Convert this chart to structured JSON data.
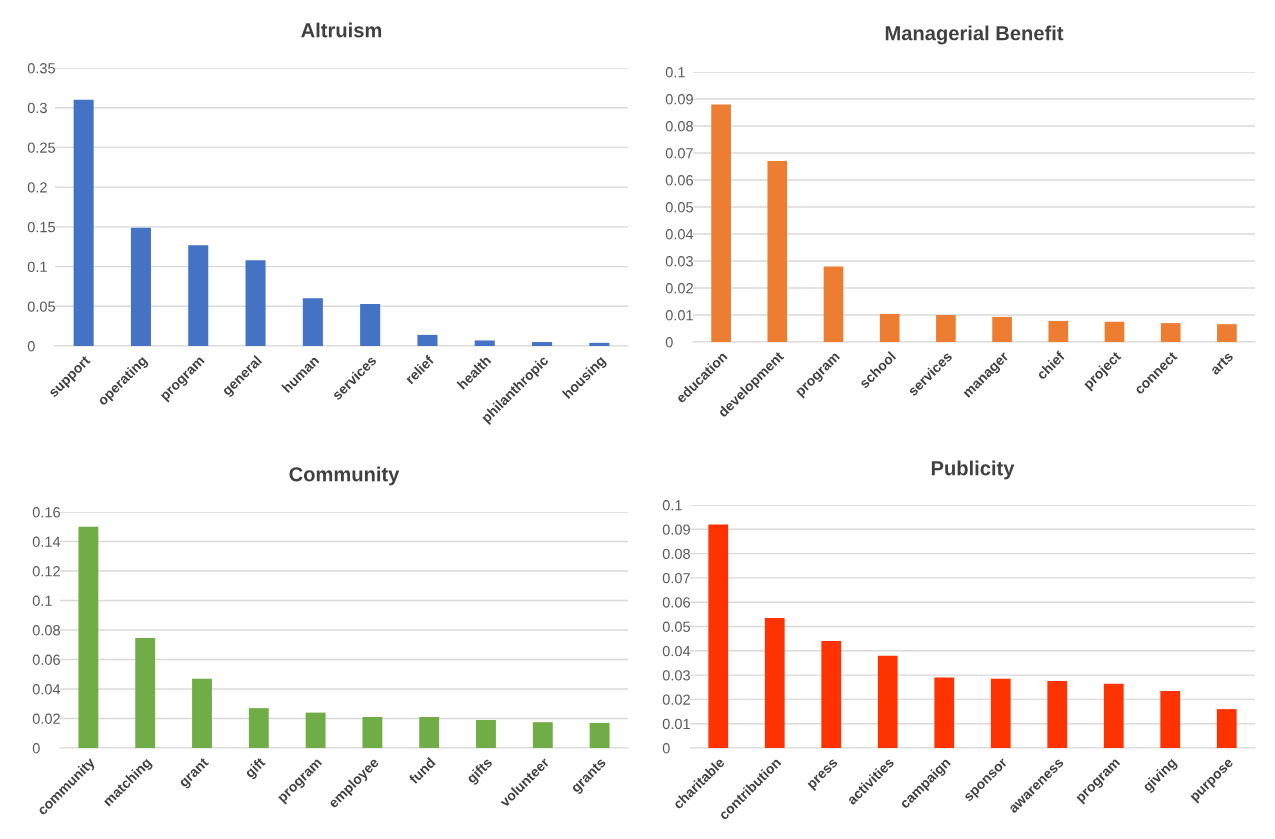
{
  "chart_data": [
    {
      "type": "bar",
      "title": "Altruism",
      "categories": [
        "support",
        "operating",
        "program",
        "general",
        "human",
        "services",
        "relief",
        "health",
        "philanthropic",
        "housing"
      ],
      "values": [
        0.31,
        0.149,
        0.127,
        0.108,
        0.06,
        0.053,
        0.014,
        0.007,
        0.005,
        0.004
      ],
      "color": "#4472c4",
      "ylim": [
        0,
        0.35
      ],
      "yticks": [
        0,
        0.05,
        0.1,
        0.15,
        0.2,
        0.25,
        0.3,
        0.35
      ],
      "grid": "y"
    },
    {
      "type": "bar",
      "title": "Managerial Benefit",
      "categories": [
        "education",
        "development",
        "program",
        "school",
        "services",
        "manager",
        "chief",
        "project",
        "connect",
        "arts"
      ],
      "values": [
        0.088,
        0.067,
        0.028,
        0.0104,
        0.01,
        0.0093,
        0.0078,
        0.0075,
        0.007,
        0.0066
      ],
      "color": "#ed7d31",
      "ylim": [
        0,
        0.1
      ],
      "yticks": [
        0,
        0.01,
        0.02,
        0.03,
        0.04,
        0.05,
        0.06,
        0.07,
        0.08,
        0.09,
        0.1
      ],
      "grid": "y"
    },
    {
      "type": "bar",
      "title": "Community",
      "categories": [
        "community",
        "matching",
        "grant",
        "gift",
        "program",
        "employee",
        "fund",
        "gifts",
        "volunteer",
        "grants"
      ],
      "values": [
        0.15,
        0.0745,
        0.047,
        0.027,
        0.024,
        0.021,
        0.021,
        0.019,
        0.0175,
        0.017
      ],
      "color": "#70ad47",
      "ylim": [
        0,
        0.16
      ],
      "yticks": [
        0,
        0.02,
        0.04,
        0.06,
        0.08,
        0.1,
        0.12,
        0.14,
        0.16
      ],
      "grid": "y"
    },
    {
      "type": "bar",
      "title": "Publicity",
      "categories": [
        "charitable",
        "contribution",
        "press",
        "activities",
        "campaign",
        "sponsor",
        "awareness",
        "program",
        "giving",
        "purpose"
      ],
      "values": [
        0.092,
        0.0535,
        0.044,
        0.038,
        0.029,
        0.0285,
        0.0276,
        0.0264,
        0.0235,
        0.016
      ],
      "color": "#ff3300",
      "ylim": [
        0,
        0.1
      ],
      "yticks": [
        0,
        0.01,
        0.02,
        0.03,
        0.04,
        0.05,
        0.06,
        0.07,
        0.08,
        0.09,
        0.1
      ],
      "grid": "y"
    }
  ]
}
